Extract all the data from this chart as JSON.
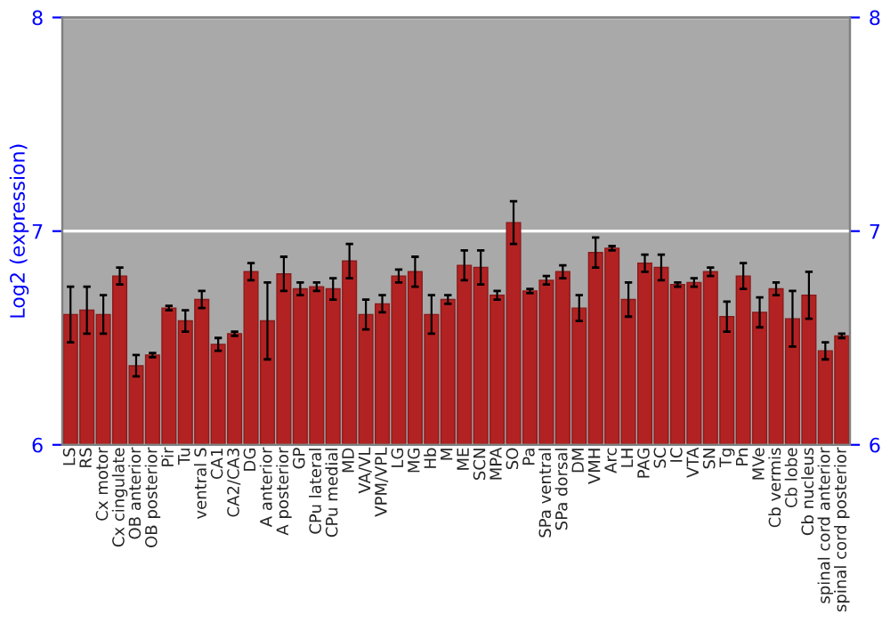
{
  "chart_data": {
    "type": "bar",
    "ylabel": "Log2 (expression)",
    "categories": [
      "LS",
      "RS",
      "Cx motor",
      "Cx cingulate",
      "OB anterior",
      "OB posterior",
      "Pir",
      "Tu",
      "ventral S",
      "CA1",
      "CA2/CA3",
      "DG",
      "A anterior",
      "A posterior",
      "GP",
      "CPu lateral",
      "CPu medial",
      "MD",
      "VA/VL",
      "VPM/VPL",
      "LG",
      "MG",
      "Hb",
      "M",
      "ME",
      "SCN",
      "MPA",
      "SO",
      "Pa",
      "SPa ventral",
      "SPa dorsal",
      "DM",
      "VMH",
      "Arc",
      "LH",
      "PAG",
      "SC",
      "IC",
      "VTA",
      "SN",
      "Tg",
      "Pn",
      "MVe",
      "Cb vermis",
      "Cb lobe",
      "Cb nucleus",
      "spinal cord anterior",
      "spinal cord posterior"
    ],
    "values": [
      6.61,
      6.63,
      6.61,
      6.79,
      6.37,
      6.42,
      6.64,
      6.58,
      6.68,
      6.47,
      6.52,
      6.81,
      6.58,
      6.8,
      6.73,
      6.74,
      6.73,
      6.86,
      6.61,
      6.66,
      6.79,
      6.81,
      6.61,
      6.68,
      6.84,
      6.83,
      6.7,
      7.04,
      6.72,
      6.77,
      6.81,
      6.64,
      6.9,
      6.92,
      6.68,
      6.85,
      6.83,
      6.75,
      6.76,
      6.81,
      6.6,
      6.79,
      6.62,
      6.73,
      6.59,
      6.7,
      6.44,
      6.51
    ],
    "errors": [
      0.13,
      0.11,
      0.09,
      0.04,
      0.05,
      0.01,
      0.01,
      0.05,
      0.04,
      0.03,
      0.01,
      0.04,
      0.18,
      0.08,
      0.03,
      0.02,
      0.05,
      0.08,
      0.07,
      0.04,
      0.03,
      0.07,
      0.09,
      0.02,
      0.07,
      0.08,
      0.02,
      0.1,
      0.01,
      0.02,
      0.03,
      0.06,
      0.07,
      0.01,
      0.08,
      0.04,
      0.06,
      0.01,
      0.02,
      0.02,
      0.07,
      0.06,
      0.07,
      0.03,
      0.13,
      0.11,
      0.04,
      0.01
    ],
    "color": "#b22222",
    "ylim": [
      6,
      8
    ],
    "yticks": [
      6,
      7,
      8
    ],
    "y2lim": [
      6,
      8
    ],
    "y2ticks": [
      6,
      7,
      8
    ],
    "grid": "y"
  }
}
